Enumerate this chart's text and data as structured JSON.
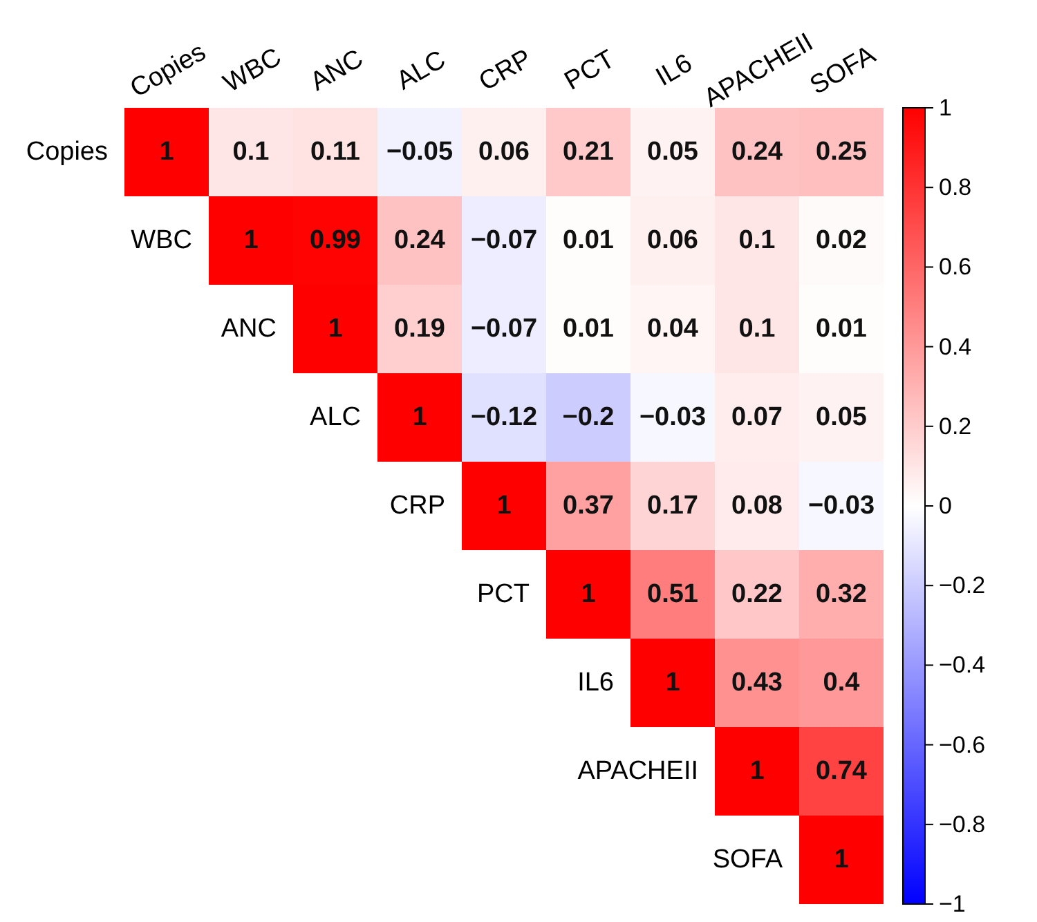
{
  "chart_data": {
    "type": "heatmap",
    "categories": [
      "Copies",
      "WBC",
      "ANC",
      "ALC",
      "CRP",
      "PCT",
      "IL6",
      "APACHEII",
      "SOFA"
    ],
    "y_categories": [
      "Copies",
      "WBC",
      "ANC",
      "ALC",
      "CRP",
      "PCT",
      "IL6",
      "APACHEII",
      "SOFA"
    ],
    "cells": [
      [
        1,
        0.1,
        0.11,
        -0.05,
        0.06,
        0.21,
        0.05,
        0.24,
        0.25
      ],
      [
        null,
        1,
        0.99,
        0.24,
        -0.07,
        0.01,
        0.06,
        0.1,
        0.02
      ],
      [
        null,
        null,
        1,
        0.19,
        -0.07,
        0.01,
        0.04,
        0.1,
        0.01
      ],
      [
        null,
        null,
        null,
        1,
        -0.12,
        -0.2,
        -0.03,
        0.07,
        0.05
      ],
      [
        null,
        null,
        null,
        null,
        1,
        0.37,
        0.17,
        0.08,
        -0.03
      ],
      [
        null,
        null,
        null,
        null,
        null,
        1,
        0.51,
        0.22,
        0.32
      ],
      [
        null,
        null,
        null,
        null,
        null,
        null,
        1,
        0.43,
        0.4
      ],
      [
        null,
        null,
        null,
        null,
        null,
        null,
        null,
        1,
        0.74
      ],
      [
        null,
        null,
        null,
        null,
        null,
        null,
        null,
        null,
        1
      ]
    ],
    "data_labels": true,
    "clim": [
      -1,
      1
    ],
    "cticks": [
      -1,
      -0.8,
      -0.6,
      -0.4,
      -0.2,
      0,
      0.2,
      0.4,
      0.6,
      0.8,
      1
    ]
  }
}
